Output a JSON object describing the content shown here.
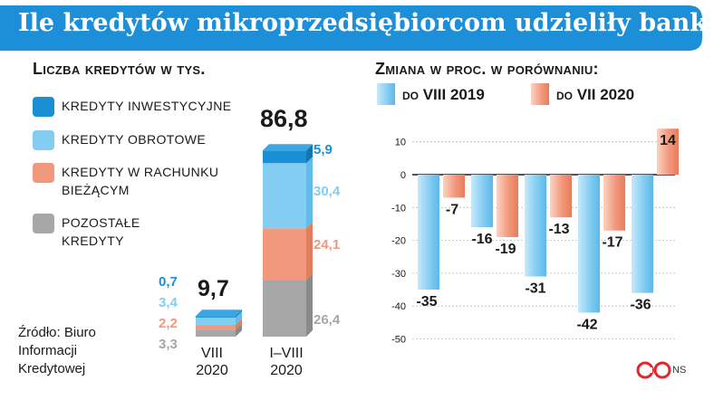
{
  "title": "Ile kredytów mikroprzedsiębiorcom udzieliły banki",
  "colors": {
    "banner": "#1d8ed8",
    "investment": "#1a8fd5",
    "working": "#84cdf2",
    "current": "#f2987c",
    "other": "#a7a7a7",
    "ink": "#1a1a1a"
  },
  "left_heading": "Liczba kredytów w tys.",
  "right_heading": "Zmiana w proc. w porównaniu:",
  "legend": [
    {
      "label": "Kredyty inwestycyjne",
      "color": "#1a8fd5"
    },
    {
      "label": "Kredyty obrotowe",
      "color": "#84cdf2"
    },
    {
      "label": "Kredyty w rachunku bieżącym",
      "color": "#f2987c"
    },
    {
      "label": "Pozostałe kredyty",
      "color": "#a7a7a7"
    }
  ],
  "source": "Źródło: Biuro\nInformacji\nKredytowej",
  "credit": "NS",
  "chart_data": [
    {
      "type": "bar",
      "stacked": true,
      "title": "Liczba kredytów w tys.",
      "categories": [
        "VIII\n2020",
        "I–VIII\n2020"
      ],
      "totals": [
        "9,7",
        "86,8"
      ],
      "series": [
        {
          "name": "Pozostałe kredyty",
          "values": [
            3.3,
            26.4
          ],
          "labels": [
            "3,3",
            "26,4"
          ],
          "color": "#a7a7a7"
        },
        {
          "name": "Kredyty w rachunku bieżącym",
          "values": [
            2.2,
            24.1
          ],
          "labels": [
            "2,2",
            "24,1"
          ],
          "color": "#f2987c"
        },
        {
          "name": "Kredyty obrotowe",
          "values": [
            3.4,
            30.4
          ],
          "labels": [
            "3,4",
            "30,4"
          ],
          "color": "#84cdf2"
        },
        {
          "name": "Kredyty inwestycyjne",
          "values": [
            0.7,
            5.9
          ],
          "labels": [
            "0,7",
            "5,9"
          ],
          "color": "#1a8fd5"
        }
      ],
      "ylim": [
        0,
        86.8
      ],
      "grid": false,
      "legend": "left"
    },
    {
      "type": "bar",
      "title": "Zmiana w proc. w porównaniu:",
      "series": [
        {
          "name": "do VIII 2019",
          "values": [
            -35,
            -16,
            -31,
            -42,
            -36
          ],
          "color": "#84cdf2"
        },
        {
          "name": "do VII 2020",
          "values": [
            -7,
            -19,
            -13,
            -17,
            14
          ],
          "color": "#f2987c"
        }
      ],
      "yticks": [
        10,
        0,
        -10,
        -20,
        -30,
        -40,
        -50
      ],
      "ylim": [
        -50,
        15
      ],
      "grid": true,
      "legend": "top"
    }
  ]
}
